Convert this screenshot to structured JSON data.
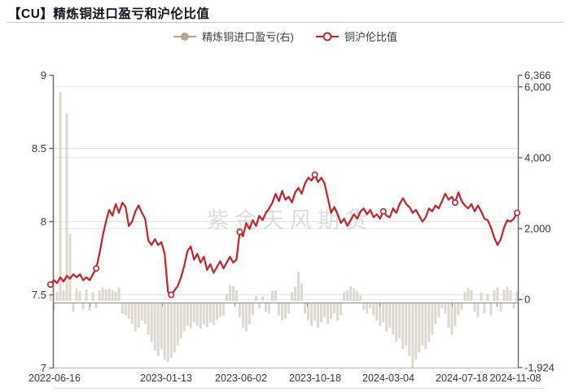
{
  "header": {
    "title": "【CU】精炼铜进口盈亏和沪伦比值"
  },
  "legend": {
    "items": [
      {
        "label": "精炼铜进口盈亏(右)",
        "marker": "filled-circle",
        "color": "#b4a492"
      },
      {
        "label": "铜沪伦比值",
        "marker": "open-circle",
        "color": "#c8232b"
      }
    ]
  },
  "watermark": "紫金天风期货",
  "colors": {
    "line": "#c8232b",
    "bar": "#d8d0c2",
    "grid": "#e4e4e4",
    "axis": "#6f6f6f",
    "x_axis_line": "#8a8a8a",
    "bottom_border": "#b5b5b5"
  },
  "chart_data": {
    "type": "line+bar",
    "title": "【CU】精炼铜进口盈亏和沪伦比值",
    "x_range": [
      "2022-06-16",
      "2024-11-08"
    ],
    "x_tick_labels": [
      "2022-06-16",
      "2023-01-13",
      "2023-06-02",
      "2023-10-18",
      "2024-03-04",
      "2024-07-18",
      "2024-11-08"
    ],
    "left_axis": {
      "ticks": [
        "9",
        "8.5",
        "8",
        "7.5",
        "7"
      ],
      "tick_values": [
        9,
        8.5,
        8,
        7.5,
        7
      ],
      "range": [
        7,
        9
      ]
    },
    "right_axis": {
      "ticks": [
        "6,366",
        "6,000",
        "4,000",
        "2,000",
        "0",
        "-1,924"
      ],
      "tick_values": [
        6366,
        6000,
        4000,
        2000,
        0,
        -1924
      ],
      "range": [
        -1924,
        6366
      ]
    },
    "grid": "horizontal-only",
    "legend_position": "top-center",
    "series": [
      {
        "name": "精炼铜进口盈亏(右)",
        "type": "bar",
        "axis": "right",
        "color": "#d8d0c2",
        "values": [
          150,
          -200,
          250,
          5900,
          300,
          5300,
          1900,
          -250,
          350,
          280,
          -180,
          320,
          -220,
          260,
          -150,
          300,
          380,
          320,
          350,
          300,
          260,
          380,
          -300,
          -350,
          -450,
          -600,
          -800,
          -700,
          -500,
          -600,
          -900,
          -1100,
          -1350,
          -1500,
          -1300,
          -1600,
          -1650,
          -1550,
          -1400,
          -1200,
          -1000,
          -800,
          -650,
          -700,
          -550,
          -650,
          -730,
          -600,
          -680,
          -550,
          -620,
          -480,
          -400,
          -350,
          200,
          450,
          420,
          300,
          -400,
          -700,
          -800,
          -600,
          -350,
          150,
          -150,
          120,
          -250,
          -300,
          280,
          300,
          -350,
          -500,
          -450,
          -300,
          250,
          400,
          830,
          500,
          -300,
          -500,
          -650,
          -500,
          -700,
          -550,
          -400,
          -600,
          -450,
          -300,
          -500,
          -350,
          250,
          300,
          420,
          350,
          280,
          150,
          -200,
          -300,
          -150,
          -350,
          -500,
          -650,
          -550,
          -800,
          -700,
          -900,
          -1100,
          -1000,
          -1300,
          -1200,
          -1500,
          -1924,
          -1600,
          -1400,
          -1200,
          -1300,
          -1100,
          -900,
          -600,
          -400,
          -150,
          -300,
          -700,
          -900,
          -650,
          -350,
          -200,
          250,
          370,
          300,
          -250,
          -400,
          250,
          -300,
          200,
          -350,
          300,
          380,
          -250,
          320,
          400,
          300,
          -150,
          260
        ]
      },
      {
        "name": "铜沪伦比值",
        "type": "line",
        "axis": "left",
        "color": "#c8232b",
        "marker_indices": [
          0,
          14,
          37,
          58,
          81,
          102,
          124,
          143
        ],
        "values": [
          7.57,
          7.6,
          7.58,
          7.62,
          7.59,
          7.63,
          7.61,
          7.64,
          7.62,
          7.64,
          7.6,
          7.62,
          7.6,
          7.64,
          7.68,
          7.78,
          7.9,
          8.0,
          8.08,
          8.04,
          8.12,
          8.06,
          8.13,
          8.1,
          7.97,
          8.0,
          8.07,
          8.11,
          8.06,
          8.02,
          7.87,
          7.84,
          7.88,
          7.84,
          7.86,
          7.78,
          7.52,
          7.5,
          7.53,
          7.56,
          7.62,
          7.7,
          7.8,
          7.83,
          7.74,
          7.78,
          7.72,
          7.76,
          7.67,
          7.71,
          7.65,
          7.69,
          7.73,
          7.68,
          7.72,
          7.76,
          7.72,
          7.74,
          7.93,
          7.9,
          7.99,
          7.95,
          8.01,
          7.97,
          8.04,
          8.01,
          8.06,
          8.09,
          8.13,
          8.19,
          8.14,
          8.21,
          8.15,
          8.17,
          8.13,
          8.2,
          8.23,
          8.19,
          8.26,
          8.3,
          8.28,
          8.32,
          8.27,
          8.3,
          8.26,
          8.16,
          8.06,
          8.1,
          8.05,
          7.99,
          8.02,
          7.97,
          8.01,
          8.05,
          8.02,
          8.07,
          8.09,
          8.05,
          8.08,
          8.03,
          8.05,
          8.02,
          8.07,
          8.04,
          8.03,
          8.09,
          8.06,
          8.12,
          8.16,
          8.12,
          8.1,
          8.06,
          8.08,
          8.04,
          8.0,
          8.03,
          8.09,
          8.07,
          8.11,
          8.09,
          8.14,
          8.19,
          8.15,
          8.17,
          8.13,
          8.2,
          8.14,
          8.11,
          8.09,
          8.12,
          8.07,
          8.11,
          8.07,
          8.02,
          8.01,
          7.96,
          7.89,
          7.84,
          7.88,
          7.96,
          8.01,
          8.0,
          8.02,
          8.06
        ]
      }
    ]
  }
}
